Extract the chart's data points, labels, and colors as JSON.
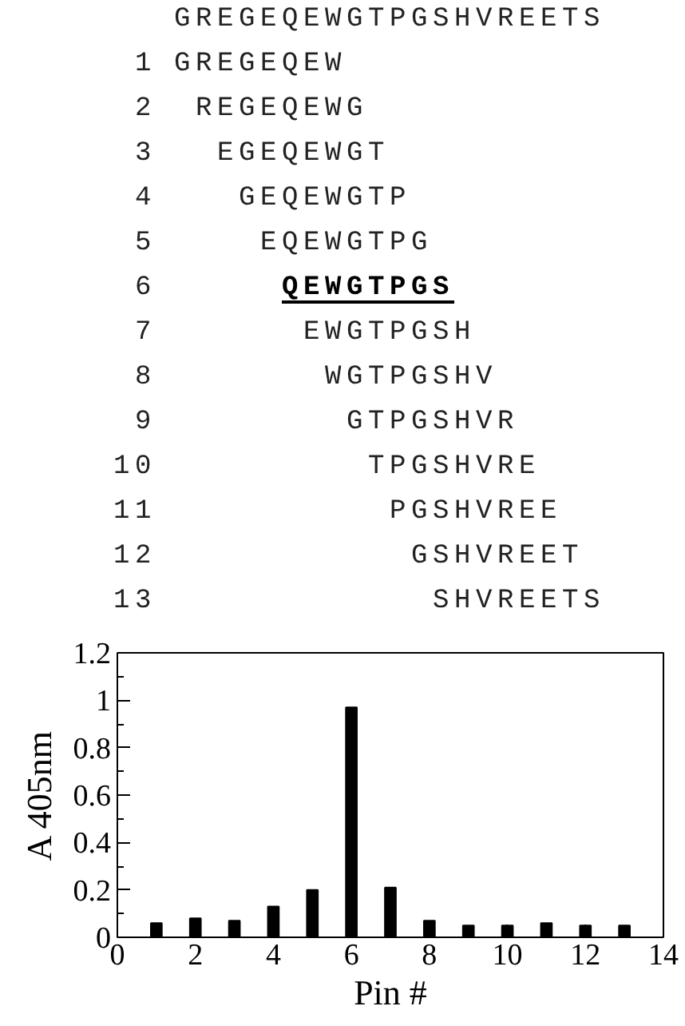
{
  "chart_data": {
    "type": "bar",
    "xlabel": "Pin #",
    "ylabel": "A 405nm",
    "x": [
      1,
      2,
      3,
      4,
      5,
      6,
      7,
      8,
      9,
      10,
      11,
      12,
      13
    ],
    "values": [
      0.06,
      0.08,
      0.07,
      0.13,
      0.2,
      0.97,
      0.21,
      0.07,
      0.05,
      0.05,
      0.06,
      0.05,
      0.05
    ],
    "color": "#000000",
    "xlim": [
      0,
      14
    ],
    "xticks": [
      0,
      2,
      4,
      6,
      8,
      10,
      12,
      14
    ],
    "ylim": [
      0,
      1.2
    ],
    "yticks": [
      0,
      0.2,
      0.4,
      0.6,
      0.8,
      1,
      1.2
    ],
    "grid": false,
    "annotations": [
      "GREGEQEWGTPGSHVREETS",
      "1 GREGEQEW",
      "2 REGEQEWG",
      "3 EGEQEWGT",
      "4 GEQEWGTP",
      "5 EQEWGTPG",
      "6 QEWGTPGS",
      "7 EWGTPGSH",
      "8 WGTPGSHV",
      "9 GTPGSHVR",
      "10 TPGSHVRE",
      "11 PGSHVREE",
      "12 GSHVREET",
      "13 SHVREETS"
    ]
  }
}
